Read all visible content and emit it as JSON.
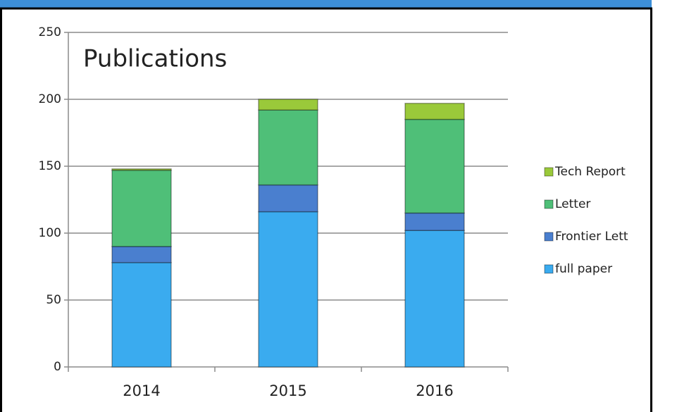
{
  "chart_data": {
    "type": "stacked_bar",
    "title": "Publications",
    "categories": [
      "2014",
      "2015",
      "2016"
    ],
    "series": [
      {
        "name": "full paper",
        "color": "#3aabef",
        "values": [
          78,
          116,
          102
        ]
      },
      {
        "name": "Frontier Lett",
        "color": "#4a7fcf",
        "values": [
          12,
          20,
          13
        ]
      },
      {
        "name": "Letter",
        "color": "#4fbf78",
        "values": [
          57,
          56,
          70
        ]
      },
      {
        "name": "Tech Report",
        "color": "#9ac93a",
        "values": [
          1,
          8,
          12
        ]
      }
    ],
    "ylim": [
      0,
      250
    ],
    "yticks": [
      0,
      50,
      100,
      150,
      200,
      250
    ],
    "grid": true
  }
}
